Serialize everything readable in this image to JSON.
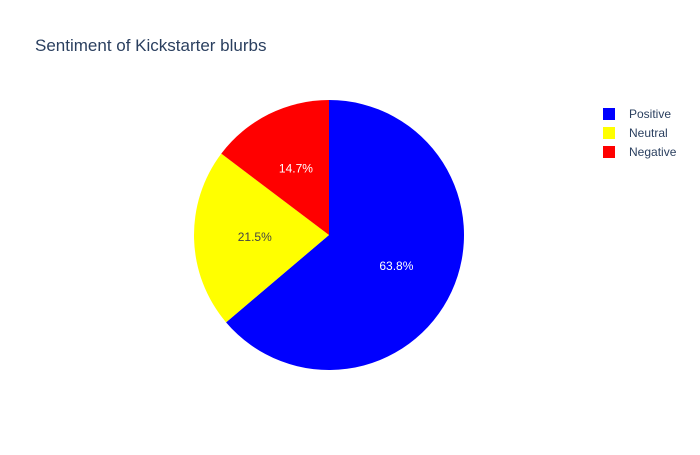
{
  "chart_data": {
    "type": "pie",
    "title": "Sentiment of Kickstarter blurbs",
    "categories": [
      "Positive",
      "Neutral",
      "Negative"
    ],
    "values": [
      63.8,
      21.5,
      14.7
    ],
    "labels": [
      "63.8%",
      "21.5%",
      "14.7%"
    ],
    "colors": [
      "#0000ff",
      "#ffff00",
      "#ff0000"
    ],
    "label_colors": [
      "#ffffff",
      "#444444",
      "#ffffff"
    ],
    "direction": "clockwise",
    "start": "top",
    "legend": {
      "position": "right",
      "entries": [
        "Positive",
        "Neutral",
        "Negative"
      ]
    }
  }
}
